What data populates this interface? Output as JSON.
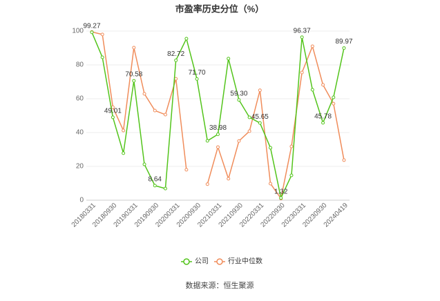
{
  "chart_data": {
    "type": "line",
    "title": "市盈率历史分位（%）",
    "categories": [
      "20180331",
      null,
      "20180930",
      null,
      "20190331",
      null,
      "20190930",
      null,
      "20200331",
      null,
      "20200930",
      null,
      "20210331",
      null,
      "20210930",
      null,
      "20220331",
      null,
      "20220930",
      null,
      "20230331",
      null,
      "20230930",
      null,
      "20240419"
    ],
    "series": [
      {
        "name": "公司",
        "color": "#52c41a",
        "values": [
          99.27,
          84.5,
          49.01,
          27.8,
          70.58,
          21.2,
          8.64,
          6.9,
          82.72,
          95.5,
          71.7,
          35.1,
          38.98,
          83.7,
          59.3,
          49,
          45.65,
          31,
          1.32,
          14.7,
          96.37,
          65.3,
          45.78,
          60.8,
          89.97
        ],
        "value_labels": [
          "99.27",
          null,
          "49.01",
          null,
          "70.58",
          null,
          "8.64",
          null,
          "82.72",
          null,
          "71.70",
          null,
          "38.98",
          null,
          "59.30",
          null,
          "45.65",
          null,
          "1.32",
          null,
          "96.37",
          null,
          "45.78",
          null,
          "89.97"
        ]
      },
      {
        "name": "行业中位数",
        "color": "#f08c5a",
        "values": [
          99.5,
          98,
          55,
          41.2,
          90.2,
          62.9,
          53,
          50.6,
          71.8,
          18,
          null,
          9.5,
          31.4,
          12.7,
          35,
          40.8,
          65,
          9.8,
          1,
          31.8,
          75.5,
          91,
          68.2,
          57.1,
          23.7
        ]
      }
    ],
    "ylim": [
      0,
      100
    ],
    "yticks": [
      0,
      20,
      40,
      60,
      80,
      100
    ],
    "grid": true,
    "source": "数据来源：恒生聚源"
  }
}
